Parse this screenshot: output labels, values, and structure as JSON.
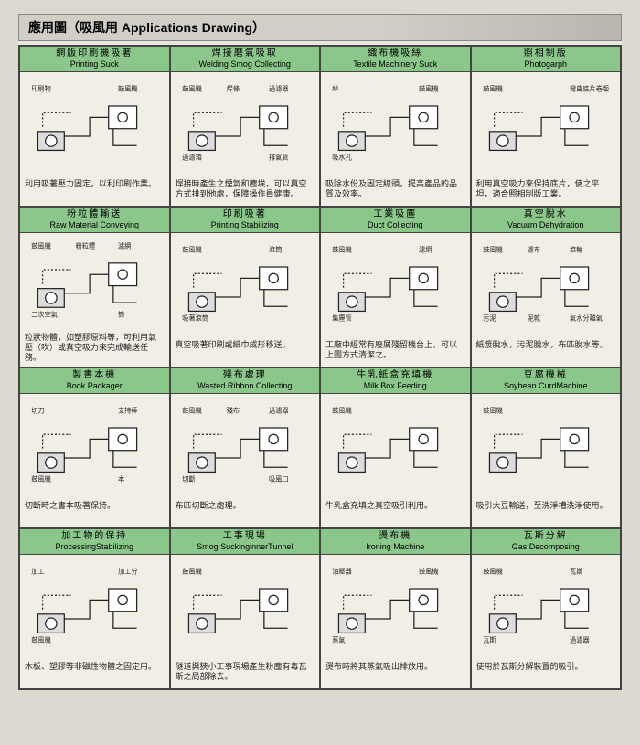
{
  "page_title": "應用圖（吸風用 Applications Drawing）",
  "colors": {
    "header_bg": "#8bc78b",
    "page_bg": "#e8e5dc",
    "border": "#444444",
    "stroke": "#222222"
  },
  "cells": [
    {
      "zh_title": "網版印刷機吸著",
      "en_title": "Printing Suck",
      "caption": "利用吸著壓力固定，以利印刷作業。",
      "labels": [
        "印刷物",
        "鼓風機"
      ]
    },
    {
      "zh_title": "焊接磨氣吸取",
      "en_title": "Welding Smog Collecting",
      "caption": "焊接時產生之煙氣和塵埃，可以真空方式排到他處，保障操作員健康。",
      "labels": [
        "鼓風機",
        "過濾器",
        "過濾箱",
        "排氣管",
        "焊條"
      ]
    },
    {
      "zh_title": "織布機吸絲",
      "en_title": "Textile Machinery Suck",
      "caption": "吸除水份及固定線頭，提高產品的品質及效率。",
      "labels": [
        "紗",
        "鼓風機",
        "吸水孔"
      ]
    },
    {
      "zh_title": "照相制版",
      "en_title": "Photogarph",
      "caption": "利用真空吸力來保持底片，使之平坦，適合照相制版工業。",
      "labels": [
        "鼓風機",
        "彎曲底片卷版"
      ]
    },
    {
      "zh_title": "粉粒體輸送",
      "en_title": "Raw Material Conveying",
      "caption": "粒狀物體，如塑膠原料等，可利用氣壓（吹）或真空吸力來完成輸送任務。",
      "labels": [
        "鼓風機",
        "濾網",
        "二次空氣",
        "筒",
        "粉粒體"
      ]
    },
    {
      "zh_title": "印刷吸著",
      "en_title": "Printing Stabilizing",
      "caption": "真空吸著印刷或紙巾成形移送。",
      "labels": [
        "鼓風機",
        "滾筒",
        "吸著滾筒"
      ]
    },
    {
      "zh_title": "工業吸塵",
      "en_title": "Duct Collecting",
      "caption": "工廠中經常有廢屑殘留機台上，可以上圖方式清潔之。",
      "labels": [
        "鼓風機",
        "濾網",
        "集塵管"
      ]
    },
    {
      "zh_title": "真空脫水",
      "en_title": "Vacuum Dehydration",
      "caption": "紙漿脫水，污泥脫水，布匹脫水等。",
      "labels": [
        "鼓風機",
        "滾輪",
        "污泥",
        "氣水分離氣",
        "濾布",
        "泥乾"
      ]
    },
    {
      "zh_title": "製書本機",
      "en_title": "Book Packager",
      "caption": "切斷時之書本吸著保持。",
      "labels": [
        "切刀",
        "支持棒",
        "鼓風機",
        "本"
      ]
    },
    {
      "zh_title": "殘布處理",
      "en_title": "Wasted Ribbon Collecting",
      "caption": "布匹切斷之處理。",
      "labels": [
        "鼓風機",
        "過濾器",
        "切斷",
        "吸風口",
        "殘布"
      ]
    },
    {
      "zh_title": "牛乳紙盒充填機",
      "en_title": "Milk Box Feeding",
      "caption": "牛乳盒充填之真空吸引利用。",
      "labels": [
        "鼓風機"
      ]
    },
    {
      "zh_title": "豆腐機械",
      "en_title": "Soybean CurdMachine",
      "caption": "吸引大豆輸送，至洗淨槽洗淨使用。",
      "labels": [
        "鼓風機"
      ]
    },
    {
      "zh_title": "加工物的保持",
      "en_title": "ProcessingStabilizing",
      "caption": "木板、塑膠等非磁性物體之固定用。",
      "labels": [
        "加工",
        "加工分",
        "鼓風機"
      ]
    },
    {
      "zh_title": "工事現場",
      "en_title": "Smog SuckinginnerTunnel",
      "caption": "隧道與狹小工事現場產生粉塵有毒瓦斯之局部除去。",
      "labels": [
        "鼓風機"
      ]
    },
    {
      "zh_title": "燙布機",
      "en_title": "Ironing Machine",
      "caption": "燙布時將其蒸氣吸出排放用。",
      "labels": [
        "油壓器",
        "鼓風機",
        "蒸氣"
      ]
    },
    {
      "zh_title": "瓦斯分解",
      "en_title": "Gas Decomposing",
      "caption": "使用於瓦斯分解裝置的吸引。",
      "labels": [
        "鼓風機",
        "瓦斯",
        "瓦斯",
        "過濾器"
      ]
    }
  ]
}
